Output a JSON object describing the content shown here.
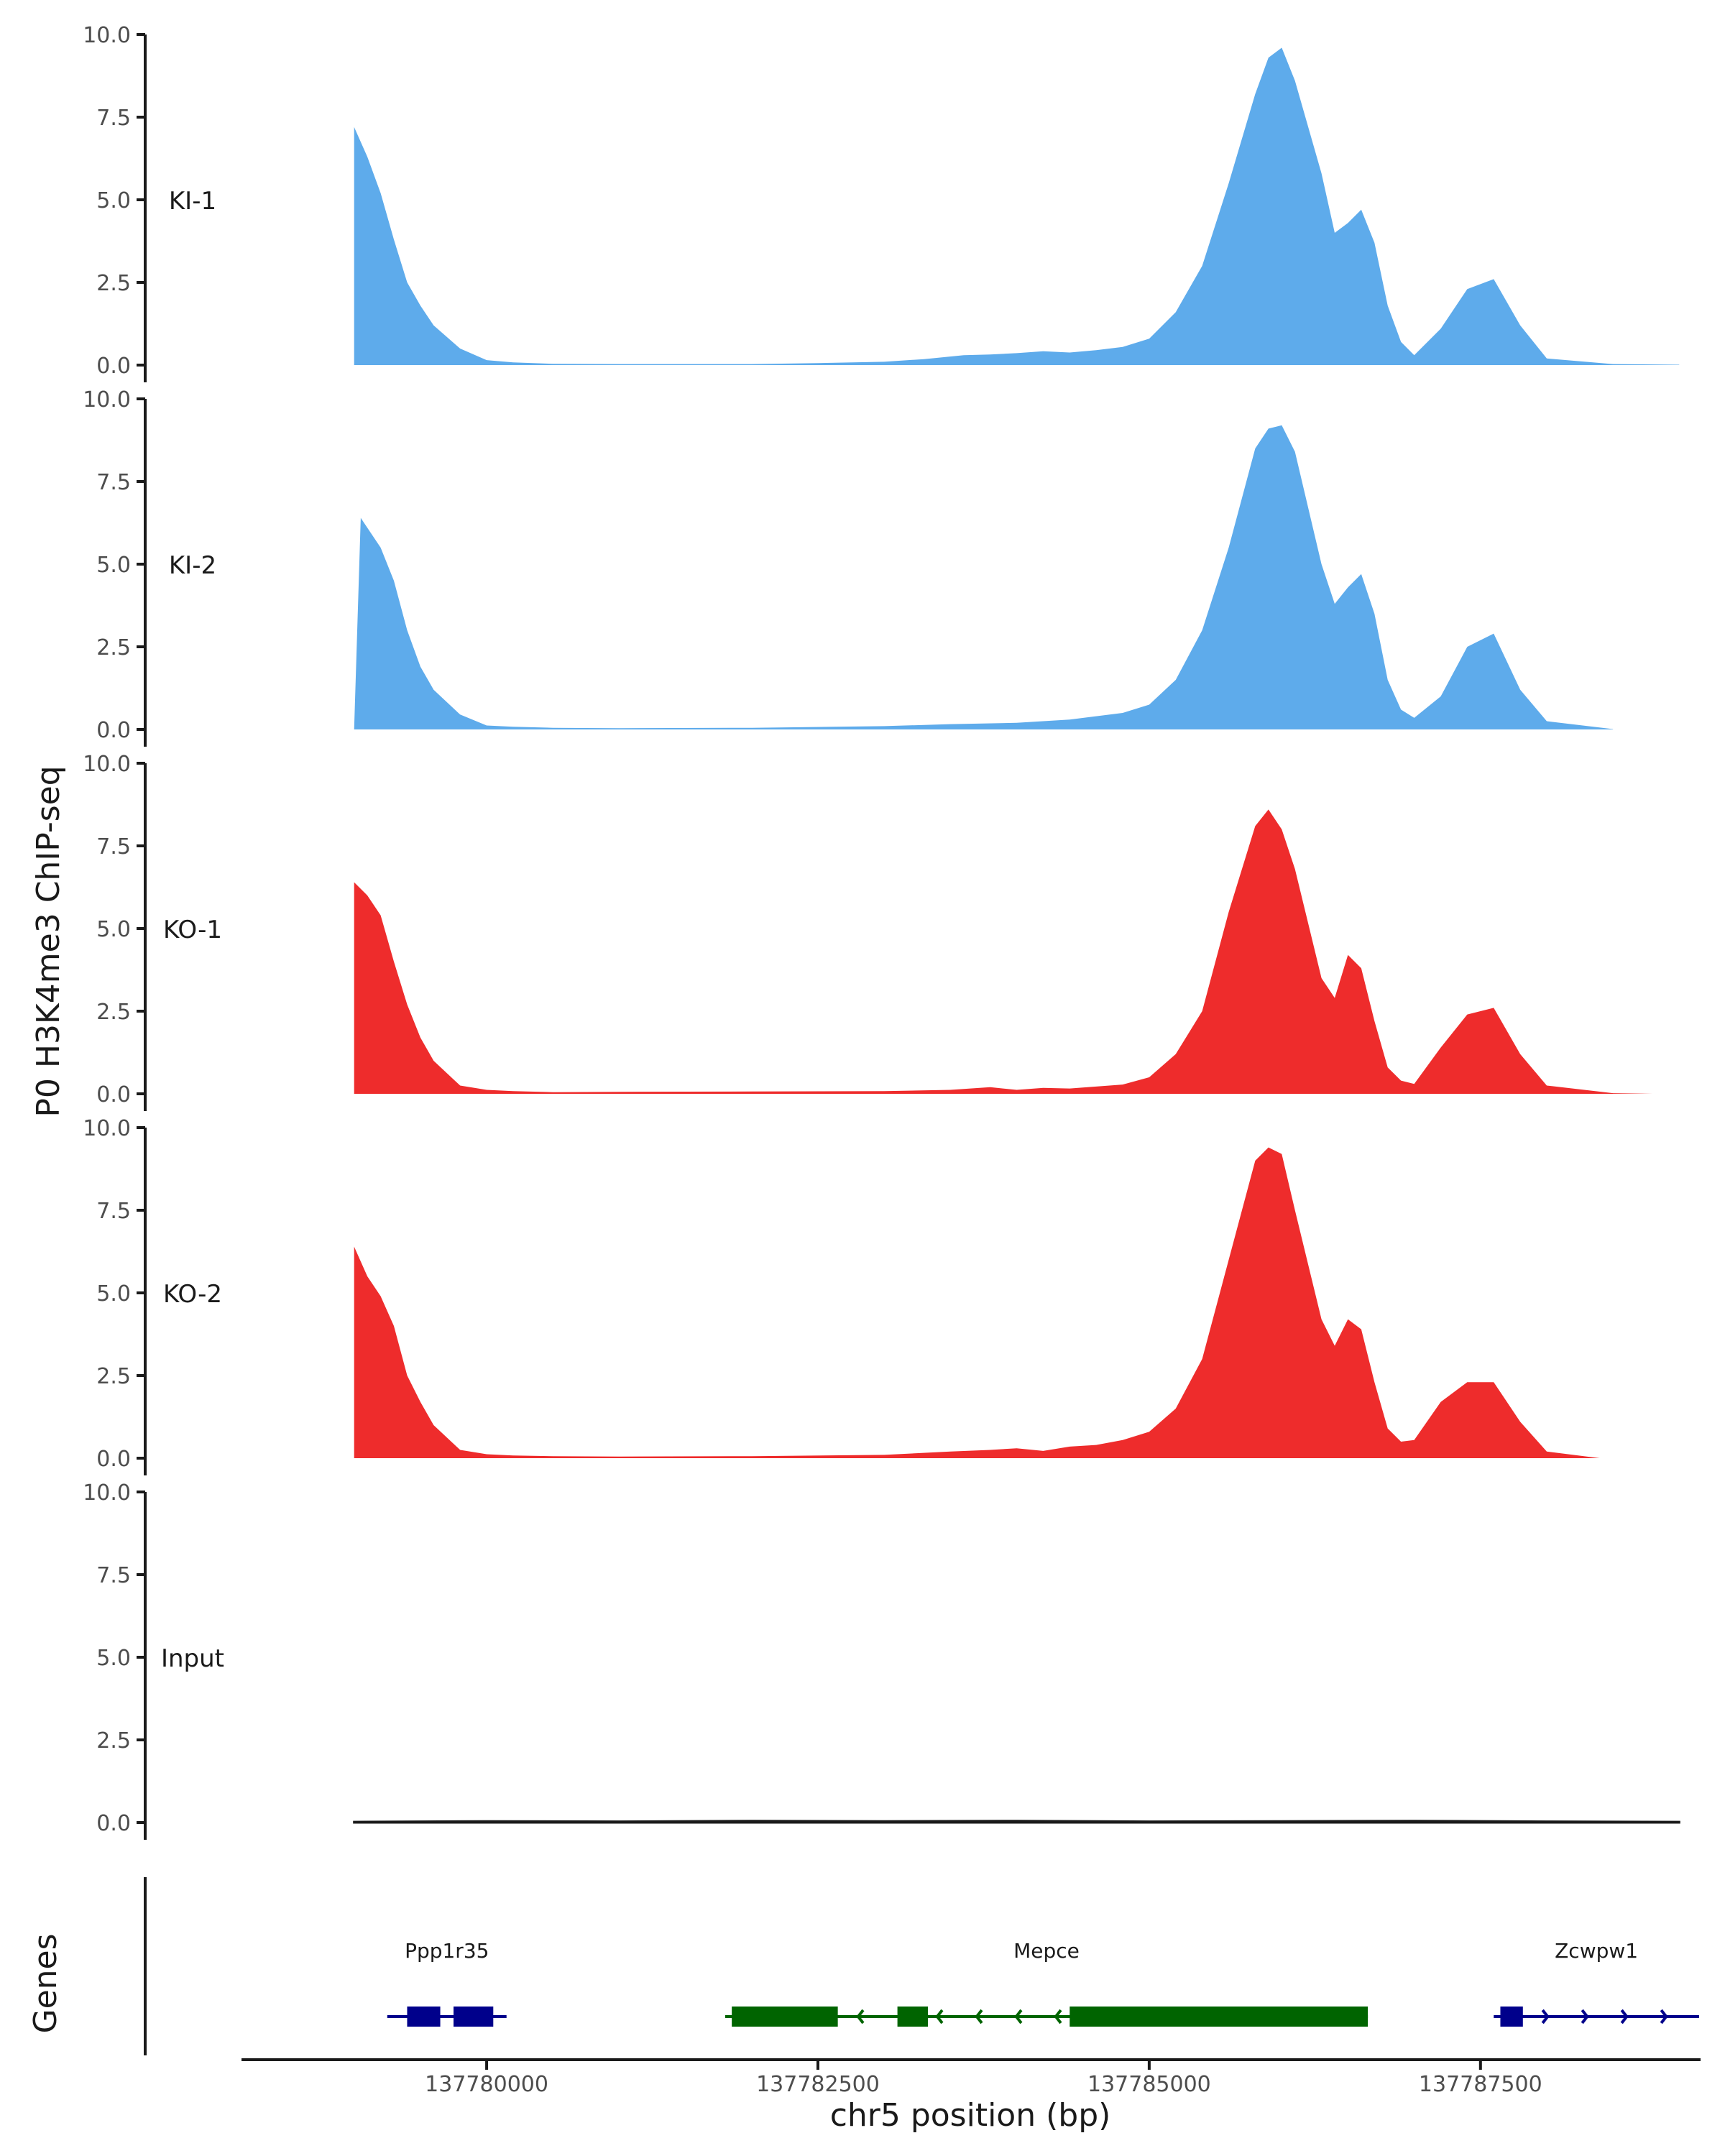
{
  "chart_data": {
    "type": "area",
    "ylabel": "P0 H3K4me3 ChIP-seq",
    "xlabel": "chr5 position (bp)",
    "ylim": [
      0,
      10
    ],
    "xlim": [
      137778150,
      137789150
    ],
    "yticks": [
      "0.0",
      "2.5",
      "5.0",
      "7.5",
      "10.0"
    ],
    "xticks": [
      {
        "value": 137780000,
        "label": "137780000"
      },
      {
        "value": 137782500,
        "label": "137782500"
      },
      {
        "value": 137785000,
        "label": "137785000"
      },
      {
        "value": 137787500,
        "label": "137787500"
      }
    ],
    "colors": {
      "KI": "#5eabeb",
      "KO": "#ee2c2c",
      "Input": "#1a1a1a",
      "gene_plus": "#00008b",
      "gene_minus": "#006400"
    },
    "tracks": [
      {
        "name": "KI-1",
        "color": "#5eabeb",
        "x": [
          137779000,
          137779100,
          137779200,
          137779300,
          137779400,
          137779500,
          137779600,
          137779800,
          137780000,
          137780200,
          137780500,
          137781000,
          137782000,
          137782500,
          137783000,
          137783300,
          137783600,
          137783800,
          137784000,
          137784200,
          137784400,
          137784600,
          137784800,
          137785000,
          137785200,
          137785400,
          137785600,
          137785800,
          137785900,
          137786000,
          137786100,
          137786300,
          137786400,
          137786500,
          137786600,
          137786700,
          137786800,
          137786900,
          137787000,
          137787200,
          137787400,
          137787600,
          137787800,
          137788000,
          137788500,
          137789000
        ],
        "y": [
          7.2,
          6.3,
          5.2,
          3.8,
          2.5,
          1.8,
          1.2,
          0.5,
          0.15,
          0.08,
          0.04,
          0.03,
          0.03,
          0.06,
          0.1,
          0.18,
          0.3,
          0.32,
          0.36,
          0.42,
          0.38,
          0.45,
          0.55,
          0.8,
          1.6,
          3.0,
          5.5,
          8.2,
          9.3,
          9.6,
          8.6,
          5.8,
          4.0,
          4.3,
          4.7,
          3.7,
          1.8,
          0.7,
          0.3,
          1.1,
          2.3,
          2.6,
          1.2,
          0.2,
          0.03,
          0.01
        ]
      },
      {
        "name": "KI-2",
        "color": "#5eabeb",
        "x": [
          137779000,
          137779050,
          137779200,
          137779300,
          137779400,
          137779500,
          137779600,
          137779800,
          137780000,
          137780200,
          137780500,
          137781000,
          137782000,
          137783000,
          137783500,
          137784000,
          137784200,
          137784400,
          137784600,
          137784800,
          137785000,
          137785200,
          137785400,
          137785600,
          137785800,
          137785900,
          137786000,
          137786100,
          137786300,
          137786400,
          137786500,
          137786600,
          137786700,
          137786800,
          137786900,
          137787000,
          137787200,
          137787400,
          137787600,
          137787800,
          137788000,
          137788500
        ],
        "y": [
          0.0,
          6.4,
          5.5,
          4.5,
          3.0,
          1.9,
          1.2,
          0.45,
          0.12,
          0.08,
          0.05,
          0.04,
          0.05,
          0.1,
          0.16,
          0.2,
          0.25,
          0.3,
          0.4,
          0.5,
          0.75,
          1.5,
          3.0,
          5.5,
          8.5,
          9.1,
          9.2,
          8.4,
          5.0,
          3.8,
          4.3,
          4.7,
          3.5,
          1.5,
          0.6,
          0.35,
          1.0,
          2.5,
          2.9,
          1.2,
          0.25,
          0.01
        ]
      },
      {
        "name": "KO-1",
        "color": "#ee2c2c",
        "x": [
          137779000,
          137779100,
          137779200,
          137779300,
          137779400,
          137779500,
          137779600,
          137779800,
          137780000,
          137780200,
          137780500,
          137781000,
          137782000,
          137783000,
          137783500,
          137783800,
          137784000,
          137784200,
          137784400,
          137784600,
          137784800,
          137785000,
          137785200,
          137785400,
          137785600,
          137785800,
          137785900,
          137786000,
          137786100,
          137786300,
          137786400,
          137786500,
          137786600,
          137786700,
          137786800,
          137786900,
          137787000,
          137787200,
          137787400,
          137787600,
          137787800,
          137788000,
          137788500,
          137788800
        ],
        "y": [
          6.4,
          6.0,
          5.4,
          4.0,
          2.7,
          1.7,
          1.0,
          0.25,
          0.12,
          0.08,
          0.05,
          0.06,
          0.07,
          0.08,
          0.12,
          0.2,
          0.12,
          0.18,
          0.16,
          0.22,
          0.28,
          0.5,
          1.2,
          2.5,
          5.5,
          8.1,
          8.6,
          8.0,
          6.8,
          3.5,
          2.9,
          4.2,
          3.8,
          2.2,
          0.8,
          0.4,
          0.3,
          1.4,
          2.4,
          2.6,
          1.2,
          0.25,
          0.02,
          0.0
        ]
      },
      {
        "name": "KO-2",
        "color": "#ee2c2c",
        "x": [
          137779000,
          137779100,
          137779200,
          137779300,
          137779400,
          137779500,
          137779600,
          137779800,
          137780000,
          137780200,
          137780500,
          137781000,
          137782000,
          137783000,
          137783500,
          137783800,
          137784000,
          137784200,
          137784400,
          137784600,
          137784800,
          137785000,
          137785200,
          137785400,
          137785600,
          137785800,
          137785900,
          137786000,
          137786100,
          137786300,
          137786400,
          137786500,
          137786600,
          137786700,
          137786800,
          137786900,
          137787000,
          137787200,
          137787400,
          137787600,
          137787800,
          137788000,
          137788400
        ],
        "y": [
          6.4,
          5.5,
          4.9,
          4.0,
          2.5,
          1.7,
          1.0,
          0.25,
          0.12,
          0.08,
          0.06,
          0.05,
          0.06,
          0.1,
          0.2,
          0.25,
          0.3,
          0.22,
          0.35,
          0.4,
          0.55,
          0.8,
          1.5,
          3.0,
          6.0,
          9.0,
          9.4,
          9.2,
          7.5,
          4.2,
          3.4,
          4.2,
          3.9,
          2.3,
          0.9,
          0.5,
          0.55,
          1.7,
          2.3,
          2.3,
          1.1,
          0.2,
          0.0
        ]
      },
      {
        "name": "Input",
        "color": "#1a1a1a",
        "x": [
          137779000,
          137780000,
          137781000,
          137782000,
          137783000,
          137784000,
          137785000,
          137786000,
          137787000,
          137788000,
          137789000
        ],
        "y": [
          0.02,
          0.04,
          0.03,
          0.05,
          0.04,
          0.05,
          0.03,
          0.04,
          0.05,
          0.03,
          0.02
        ]
      }
    ],
    "genes_track": {
      "label": "Genes",
      "genes": [
        {
          "name": "Ppp1r35",
          "strand": "+",
          "color": "#00008b",
          "start": 137779250,
          "end": 137780150,
          "blocks": [
            {
              "start": 137779400,
              "end": 137779650
            },
            {
              "start": 137779750,
              "end": 137780050
            }
          ]
        },
        {
          "name": "Mepce",
          "strand": "-",
          "color": "#006400",
          "start": 137781800,
          "end": 137786650,
          "blocks": [
            {
              "start": 137781850,
              "end": 137782650
            },
            {
              "start": 137783100,
              "end": 137783330
            },
            {
              "start": 137784400,
              "end": 137786650
            }
          ]
        },
        {
          "name": "Zcwpw1",
          "strand": "+",
          "color": "#00008b",
          "start": 137787600,
          "end": 137789150,
          "blocks": [
            {
              "start": 137787650,
              "end": 137787820
            }
          ]
        }
      ]
    }
  }
}
